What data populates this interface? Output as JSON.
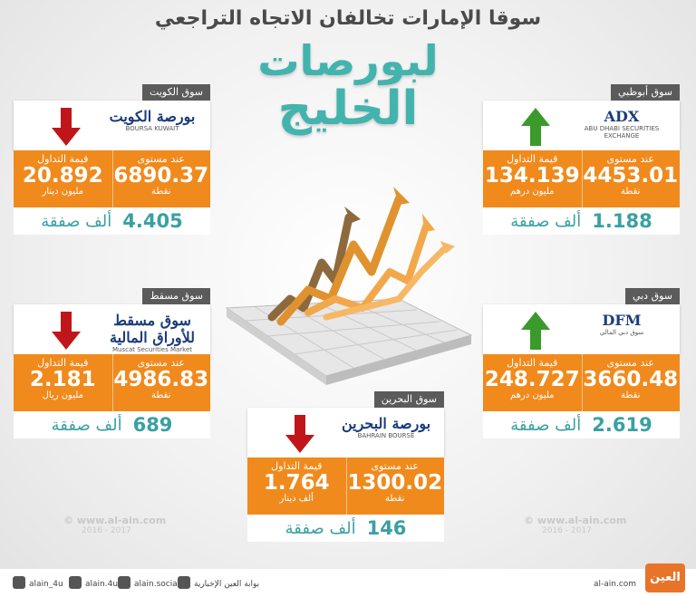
{
  "header": {
    "title": "سوقا الإمارات تخالفان الاتجاه التراجعي",
    "subtitle_line1": "لبورصات",
    "subtitle_line2": "الخليج"
  },
  "markets": [
    {
      "name": "سوق الكويت",
      "logo_main": "بورصة الكويت",
      "logo_sub": "BOURSA KUWAIT",
      "direction": "down",
      "level_label": "عند مستوى",
      "level": "6890.37",
      "level_unit": "نقطة",
      "value_label": "قيمة التداول",
      "value": "20.892",
      "value_unit": "مليون دينار",
      "deals": "4.405",
      "deals_unit": "ألف صفقة"
    },
    {
      "name": "سوق أبوظبي",
      "logo_main": "ADX",
      "logo_sub": "ABU DHABI SECURITIES EXCHANGE",
      "direction": "up",
      "level_label": "عند مستوى",
      "level": "4453.01",
      "level_unit": "نقطة",
      "value_label": "قيمة التداول",
      "value": "134.139",
      "value_unit": "مليون درهم",
      "deals": "1.188",
      "deals_unit": "ألف صفقة"
    },
    {
      "name": "سوق مسقط",
      "logo_main": "سوق مسقط للأوراق المالية",
      "logo_sub": "Muscat Securities Market",
      "direction": "down",
      "level_label": "عند مستوى",
      "level": "4986.83",
      "level_unit": "نقطة",
      "value_label": "قيمة التداول",
      "value": "2.181",
      "value_unit": "مليون ريال",
      "deals": "689",
      "deals_unit": "ألف صفقة"
    },
    {
      "name": "سوق دبي",
      "logo_main": "DFM",
      "logo_sub": "سوق دبي المالي",
      "direction": "up",
      "level_label": "عند مستوى",
      "level": "3660.48",
      "level_unit": "نقطة",
      "value_label": "قيمة التداول",
      "value": "248.727",
      "value_unit": "مليون درهم",
      "deals": "2.619",
      "deals_unit": "ألف صفقة"
    },
    {
      "name": "سوق البحرين",
      "logo_main": "بورصة البحرين",
      "logo_sub": "BAHRAIN BOURSE",
      "direction": "down",
      "level_label": "عند مستوى",
      "level": "1300.02",
      "level_unit": "نقطة",
      "value_label": "قيمة التداول",
      "value": "1.764",
      "value_unit": "ألف دينار",
      "deals": "146",
      "deals_unit": "ألف صفقة"
    }
  ],
  "watermarks": [
    {
      "site": "© www.al-ain.com",
      "years": "2016 - 2017"
    },
    {
      "site": "© www.al-ain.com",
      "years": "2016 - 2017"
    }
  ],
  "footer": {
    "twitter": "alain_4u",
    "instagram": "alain.4u",
    "facebook": "alain.social",
    "youtube": "بوابة العين الإخبارية",
    "site": "al-ain.com",
    "brand": "العين"
  }
}
